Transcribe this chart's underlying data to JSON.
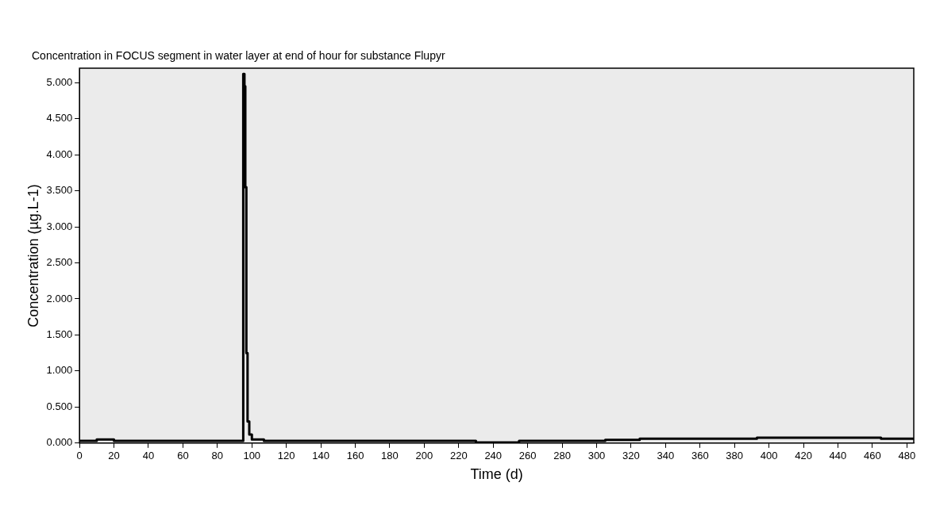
{
  "chart_data": {
    "type": "step",
    "title": "Concentration in FOCUS segment in water layer at end of hour for substance Flupyr",
    "xlabel": "Time (d)",
    "ylabel": "Concentration (µg.L-1)",
    "x": [
      0,
      10,
      20,
      95,
      95.7,
      96.2,
      96.8,
      97.5,
      98.5,
      100,
      107,
      230,
      255,
      305,
      325,
      393,
      465,
      484
    ],
    "series": [
      {
        "color": "#000000",
        "values": [
          0.03,
          0.05,
          0.03,
          5.12,
          4.95,
          3.55,
          1.25,
          0.3,
          0.12,
          0.05,
          0.03,
          0.01,
          0.03,
          0.045,
          0.06,
          0.075,
          0.06,
          0.06
        ]
      }
    ],
    "xlim": [
      0,
      484
    ],
    "ylim": [
      0,
      5.2
    ],
    "xticks": [
      0,
      20,
      40,
      60,
      80,
      100,
      120,
      140,
      160,
      180,
      200,
      220,
      240,
      260,
      280,
      300,
      320,
      340,
      360,
      380,
      400,
      420,
      440,
      460,
      480
    ],
    "yticks": [
      {
        "value": 0,
        "label": "0.000"
      },
      {
        "value": 0.5,
        "label": "0.500"
      },
      {
        "value": 1,
        "label": "1.000"
      },
      {
        "value": 1.5,
        "label": "1.500"
      },
      {
        "value": 2,
        "label": "2.000"
      },
      {
        "value": 2.5,
        "label": "2.500"
      },
      {
        "value": 3,
        "label": "3.000"
      },
      {
        "value": 3.5,
        "label": "3.500"
      },
      {
        "value": 4,
        "label": "4.000"
      },
      {
        "value": 4.5,
        "label": "4.500"
      },
      {
        "value": 5,
        "label": "5.000"
      }
    ],
    "grid": false,
    "legend": false,
    "marker": "none",
    "line_style": "solid"
  }
}
